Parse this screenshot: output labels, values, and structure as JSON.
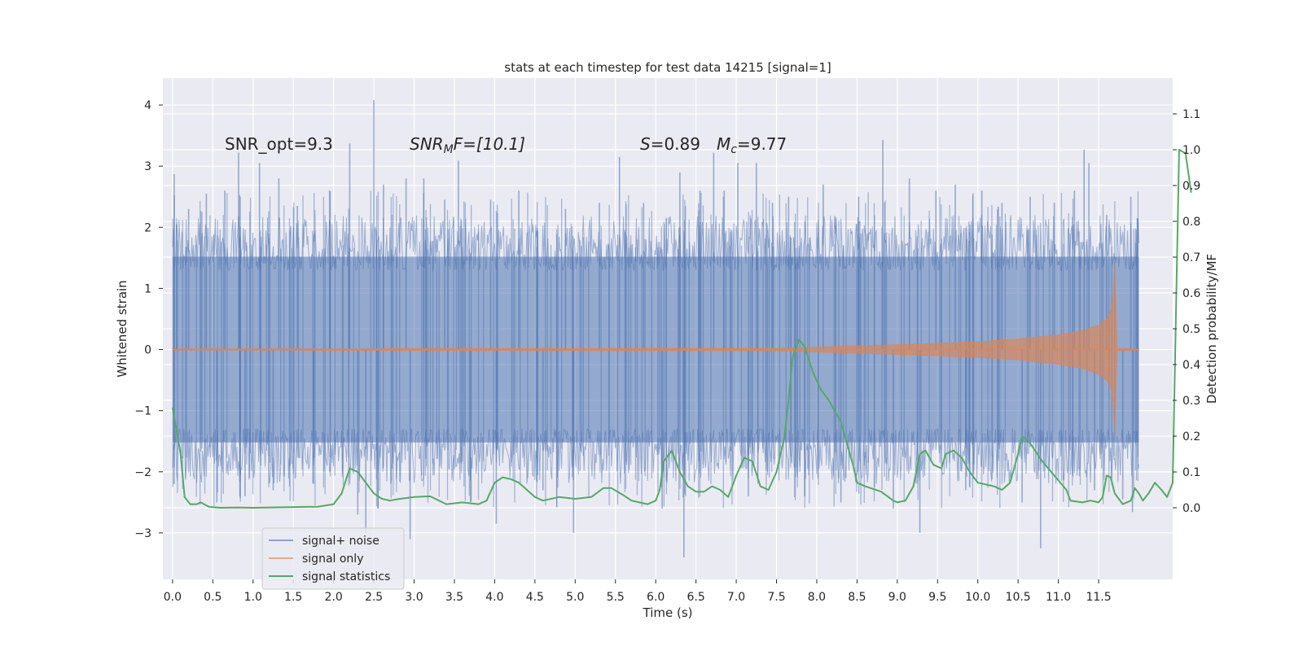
{
  "chart_data": {
    "type": "line",
    "title": "stats at each timestep for test data 14215 [signal=1]",
    "xlabel": "Time (s)",
    "ylabel": "Whitened strain",
    "y2label": "Detection probability/MF",
    "xlim": [
      -0.12,
      12.42
    ],
    "ylim": [
      -3.76,
      4.44
    ],
    "y2lim": [
      -0.2,
      1.2
    ],
    "x_ticks": [
      "0.0",
      "0.5",
      "1.0",
      "1.5",
      "2.0",
      "2.5",
      "3.0",
      "3.5",
      "4.0",
      "4.5",
      "5.0",
      "5.5",
      "6.0",
      "6.5",
      "7.0",
      "7.5",
      "8.0",
      "8.5",
      "9.0",
      "9.5",
      "10.0",
      "10.5",
      "11.0",
      "11.5"
    ],
    "y_ticks": [
      "−3",
      "−2",
      "−1",
      "0",
      "1",
      "2",
      "3",
      "4"
    ],
    "y2_ticks": [
      "0.0",
      "0.1",
      "0.2",
      "0.3",
      "0.4",
      "0.5",
      "0.6",
      "0.7",
      "0.8",
      "0.9",
      "1.0",
      "1.1"
    ],
    "grid": true,
    "legend_position": "lower-left",
    "annotations": {
      "snr_opt": "SNR_opt=9.3",
      "snr_mf_main": "SNR",
      "snr_mf_sub": "M",
      "snr_mf_tail": "F=[10.1]",
      "s_var": "S",
      "s_val": "=0.89",
      "mc_main": "M",
      "mc_sub": "c",
      "mc_val": "=9.77"
    },
    "series": [
      {
        "name": "signal+ noise",
        "color": "#4c72b0",
        "x_range": [
          0.0,
          12.0
        ],
        "core_band": [
          -1.3,
          1.3
        ],
        "spikes": [
          {
            "x": 0.02,
            "y": 2.87
          },
          {
            "x": 0.02,
            "y": -2.2
          },
          {
            "x": 0.05,
            "y": 2.05
          },
          {
            "x": 0.2,
            "y": 2.3
          },
          {
            "x": 0.42,
            "y": 2.55
          },
          {
            "x": 0.55,
            "y": -2.5
          },
          {
            "x": 0.65,
            "y": 2.6
          },
          {
            "x": 0.82,
            "y": 3.22
          },
          {
            "x": 0.9,
            "y": -2.4
          },
          {
            "x": 1.08,
            "y": 3.05
          },
          {
            "x": 1.25,
            "y": -2.3
          },
          {
            "x": 1.32,
            "y": 2.8
          },
          {
            "x": 1.55,
            "y": 2.35
          },
          {
            "x": 1.75,
            "y": -2.2
          },
          {
            "x": 1.95,
            "y": 2.6
          },
          {
            "x": 2.2,
            "y": 3.37
          },
          {
            "x": 2.3,
            "y": -2.7
          },
          {
            "x": 2.4,
            "y": -3.0
          },
          {
            "x": 2.5,
            "y": 4.08
          },
          {
            "x": 2.55,
            "y": -2.6
          },
          {
            "x": 2.62,
            "y": 2.7
          },
          {
            "x": 2.9,
            "y": 2.8
          },
          {
            "x": 2.95,
            "y": -3.1
          },
          {
            "x": 3.12,
            "y": 2.8
          },
          {
            "x": 3.38,
            "y": 2.45
          },
          {
            "x": 3.55,
            "y": 3.09
          },
          {
            "x": 3.7,
            "y": -2.5
          },
          {
            "x": 3.95,
            "y": 2.45
          },
          {
            "x": 4.02,
            "y": -2.85
          },
          {
            "x": 4.3,
            "y": 2.6
          },
          {
            "x": 4.6,
            "y": -2.3
          },
          {
            "x": 4.88,
            "y": 2.3
          },
          {
            "x": 4.98,
            "y": -3.0
          },
          {
            "x": 5.3,
            "y": 2.4
          },
          {
            "x": 5.55,
            "y": 3.15
          },
          {
            "x": 5.85,
            "y": 2.4
          },
          {
            "x": 6.08,
            "y": -2.6
          },
          {
            "x": 6.3,
            "y": 2.9
          },
          {
            "x": 6.35,
            "y": -3.4
          },
          {
            "x": 6.55,
            "y": 2.6
          },
          {
            "x": 6.72,
            "y": 3.22
          },
          {
            "x": 6.85,
            "y": 2.6
          },
          {
            "x": 7.02,
            "y": 3.05
          },
          {
            "x": 7.15,
            "y": -2.4
          },
          {
            "x": 7.25,
            "y": 3.05
          },
          {
            "x": 7.45,
            "y": 2.4
          },
          {
            "x": 7.65,
            "y": 2.5
          },
          {
            "x": 7.85,
            "y": -2.4
          },
          {
            "x": 8.08,
            "y": 2.7
          },
          {
            "x": 8.3,
            "y": -2.5
          },
          {
            "x": 8.52,
            "y": 2.5
          },
          {
            "x": 8.82,
            "y": 3.43
          },
          {
            "x": 8.95,
            "y": -2.6
          },
          {
            "x": 9.15,
            "y": 2.8
          },
          {
            "x": 9.28,
            "y": -3.0
          },
          {
            "x": 9.48,
            "y": 2.6
          },
          {
            "x": 9.72,
            "y": 2.7
          },
          {
            "x": 9.85,
            "y": -2.3
          },
          {
            "x": 10.05,
            "y": 2.6
          },
          {
            "x": 10.3,
            "y": 2.4
          },
          {
            "x": 10.55,
            "y": -2.5
          },
          {
            "x": 10.65,
            "y": 2.5
          },
          {
            "x": 10.78,
            "y": -3.25
          },
          {
            "x": 10.95,
            "y": 2.4
          },
          {
            "x": 11.2,
            "y": 2.6
          },
          {
            "x": 11.32,
            "y": 3.27
          },
          {
            "x": 11.38,
            "y": 3.05
          },
          {
            "x": 11.45,
            "y": -2.3
          },
          {
            "x": 11.6,
            "y": 2.2
          },
          {
            "x": 11.8,
            "y": -2.45
          },
          {
            "x": 11.9,
            "y": 2.5
          },
          {
            "x": 11.92,
            "y": -2.66
          },
          {
            "x": 11.98,
            "y": 2.15
          }
        ]
      },
      {
        "name": "signal only",
        "color": "#dd8452",
        "envelope": [
          {
            "x": 0.0,
            "amp": 0.01
          },
          {
            "x": 7.5,
            "amp": 0.02
          },
          {
            "x": 8.0,
            "amp": 0.04
          },
          {
            "x": 8.5,
            "amp": 0.06
          },
          {
            "x": 9.0,
            "amp": 0.08
          },
          {
            "x": 9.5,
            "amp": 0.1
          },
          {
            "x": 10.0,
            "amp": 0.13
          },
          {
            "x": 10.5,
            "amp": 0.17
          },
          {
            "x": 11.0,
            "amp": 0.24
          },
          {
            "x": 11.3,
            "amp": 0.31
          },
          {
            "x": 11.5,
            "amp": 0.4
          },
          {
            "x": 11.6,
            "amp": 0.5
          },
          {
            "x": 11.65,
            "amp": 0.62
          },
          {
            "x": 11.68,
            "amp": 0.85
          },
          {
            "x": 11.7,
            "amp": 1.4
          },
          {
            "x": 11.73,
            "amp": 0.02
          },
          {
            "x": 12.0,
            "amp": 0.01
          }
        ]
      },
      {
        "name": "signal statistics",
        "color": "#55a868",
        "points": [
          [
            0.0,
            0.28
          ],
          [
            0.1,
            0.15
          ],
          [
            0.15,
            0.03
          ],
          [
            0.22,
            0.01
          ],
          [
            0.3,
            0.01
          ],
          [
            0.35,
            0.015
          ],
          [
            0.45,
            0.003
          ],
          [
            0.6,
            0.0
          ],
          [
            0.8,
            0.001
          ],
          [
            1.0,
            0.0
          ],
          [
            1.2,
            0.001
          ],
          [
            1.5,
            0.002
          ],
          [
            1.8,
            0.003
          ],
          [
            2.0,
            0.01
          ],
          [
            2.1,
            0.04
          ],
          [
            2.2,
            0.11
          ],
          [
            2.3,
            0.1
          ],
          [
            2.4,
            0.07
          ],
          [
            2.5,
            0.04
          ],
          [
            2.6,
            0.025
          ],
          [
            2.7,
            0.02
          ],
          [
            2.8,
            0.024
          ],
          [
            3.0,
            0.03
          ],
          [
            3.2,
            0.032
          ],
          [
            3.4,
            0.01
          ],
          [
            3.6,
            0.015
          ],
          [
            3.8,
            0.01
          ],
          [
            3.9,
            0.02
          ],
          [
            4.0,
            0.07
          ],
          [
            4.1,
            0.085
          ],
          [
            4.2,
            0.08
          ],
          [
            4.3,
            0.07
          ],
          [
            4.4,
            0.05
          ],
          [
            4.5,
            0.03
          ],
          [
            4.6,
            0.02
          ],
          [
            4.8,
            0.03
          ],
          [
            5.0,
            0.025
          ],
          [
            5.2,
            0.03
          ],
          [
            5.35,
            0.055
          ],
          [
            5.45,
            0.055
          ],
          [
            5.6,
            0.035
          ],
          [
            5.7,
            0.02
          ],
          [
            5.9,
            0.01
          ],
          [
            6.0,
            0.02
          ],
          [
            6.05,
            0.05
          ],
          [
            6.1,
            0.13
          ],
          [
            6.2,
            0.16
          ],
          [
            6.3,
            0.1
          ],
          [
            6.4,
            0.06
          ],
          [
            6.5,
            0.045
          ],
          [
            6.6,
            0.045
          ],
          [
            6.7,
            0.06
          ],
          [
            6.8,
            0.05
          ],
          [
            6.9,
            0.03
          ],
          [
            7.0,
            0.09
          ],
          [
            7.1,
            0.14
          ],
          [
            7.2,
            0.13
          ],
          [
            7.3,
            0.06
          ],
          [
            7.4,
            0.05
          ],
          [
            7.5,
            0.1
          ],
          [
            7.6,
            0.2
          ],
          [
            7.65,
            0.3
          ],
          [
            7.7,
            0.42
          ],
          [
            7.78,
            0.47
          ],
          [
            7.85,
            0.45
          ],
          [
            7.95,
            0.38
          ],
          [
            8.05,
            0.33
          ],
          [
            8.15,
            0.3
          ],
          [
            8.3,
            0.24
          ],
          [
            8.45,
            0.12
          ],
          [
            8.5,
            0.07
          ],
          [
            8.6,
            0.06
          ],
          [
            8.8,
            0.045
          ],
          [
            8.95,
            0.02
          ],
          [
            9.0,
            0.015
          ],
          [
            9.1,
            0.02
          ],
          [
            9.2,
            0.06
          ],
          [
            9.28,
            0.15
          ],
          [
            9.35,
            0.16
          ],
          [
            9.45,
            0.12
          ],
          [
            9.55,
            0.11
          ],
          [
            9.6,
            0.15
          ],
          [
            9.7,
            0.16
          ],
          [
            9.8,
            0.14
          ],
          [
            9.9,
            0.1
          ],
          [
            10.0,
            0.07
          ],
          [
            10.1,
            0.065
          ],
          [
            10.2,
            0.06
          ],
          [
            10.3,
            0.05
          ],
          [
            10.4,
            0.07
          ],
          [
            10.5,
            0.15
          ],
          [
            10.55,
            0.2
          ],
          [
            10.65,
            0.18
          ],
          [
            10.8,
            0.13
          ],
          [
            10.95,
            0.09
          ],
          [
            11.1,
            0.05
          ],
          [
            11.15,
            0.02
          ],
          [
            11.3,
            0.015
          ],
          [
            11.4,
            0.02
          ],
          [
            11.5,
            0.015
          ],
          [
            11.55,
            0.03
          ],
          [
            11.6,
            0.09
          ],
          [
            11.65,
            0.085
          ],
          [
            11.7,
            0.04
          ],
          [
            11.8,
            0.01
          ],
          [
            11.9,
            0.02
          ],
          [
            11.95,
            0.055
          ],
          [
            12.0,
            0.04
          ],
          [
            12.05,
            0.02
          ],
          [
            12.12,
            0.04
          ],
          [
            12.2,
            0.07
          ],
          [
            12.28,
            0.05
          ],
          [
            12.35,
            0.03
          ],
          [
            12.42,
            0.07
          ],
          [
            12.5,
            1.0
          ],
          [
            12.58,
            0.99
          ],
          [
            12.65,
            0.88
          ]
        ]
      }
    ]
  }
}
